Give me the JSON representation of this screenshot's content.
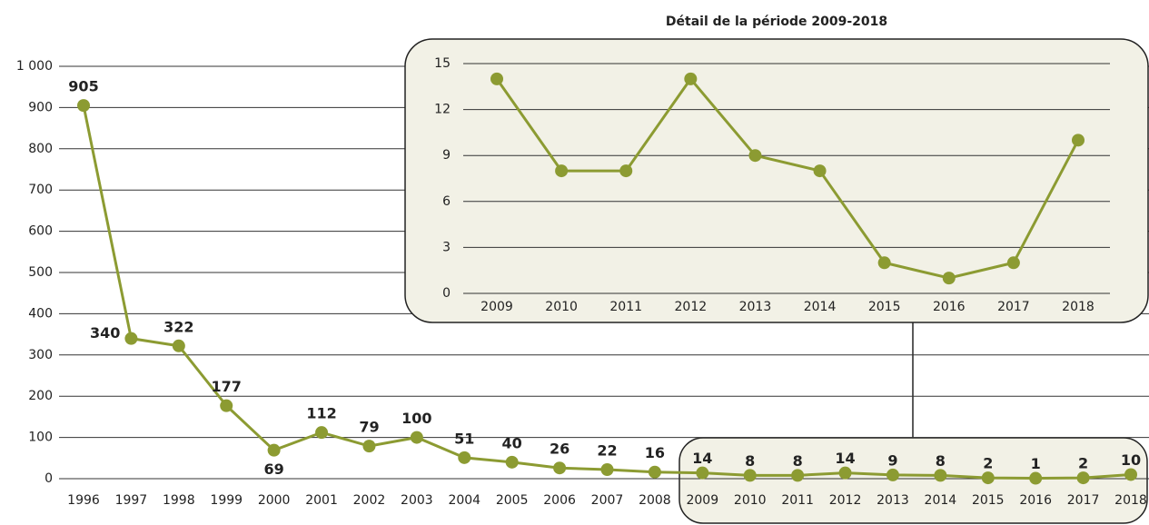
{
  "chart_data": [
    {
      "type": "line",
      "categories": [
        "1996",
        "1997",
        "1998",
        "1999",
        "2000",
        "2001",
        "2002",
        "2003",
        "2004",
        "2005",
        "2006",
        "2007",
        "2008",
        "2009",
        "2010",
        "2011",
        "2012",
        "2013",
        "2014",
        "2015",
        "2016",
        "2017",
        "2018"
      ],
      "values": [
        905,
        340,
        322,
        177,
        69,
        112,
        79,
        100,
        51,
        40,
        26,
        22,
        16,
        14,
        8,
        8,
        14,
        9,
        8,
        2,
        1,
        2,
        10
      ],
      "color": "#8c9b32",
      "ylim": [
        0,
        1000
      ],
      "yticks": [
        0,
        100,
        200,
        300,
        400,
        500,
        600,
        700,
        800,
        900,
        {
          "value": 1000,
          "label": "1 000"
        }
      ],
      "grid": true
    },
    {
      "type": "line",
      "title": "Détail de la période 2009-2018",
      "categories": [
        "2009",
        "2010",
        "2011",
        "2012",
        "2013",
        "2014",
        "2015",
        "2016",
        "2017",
        "2018"
      ],
      "values": [
        14,
        8,
        8,
        14,
        9,
        8,
        2,
        1,
        2,
        10
      ],
      "color": "#8c9b32",
      "ylim": [
        0,
        15
      ],
      "yticks": [
        0,
        3,
        6,
        9,
        12,
        15
      ],
      "grid": true
    }
  ]
}
